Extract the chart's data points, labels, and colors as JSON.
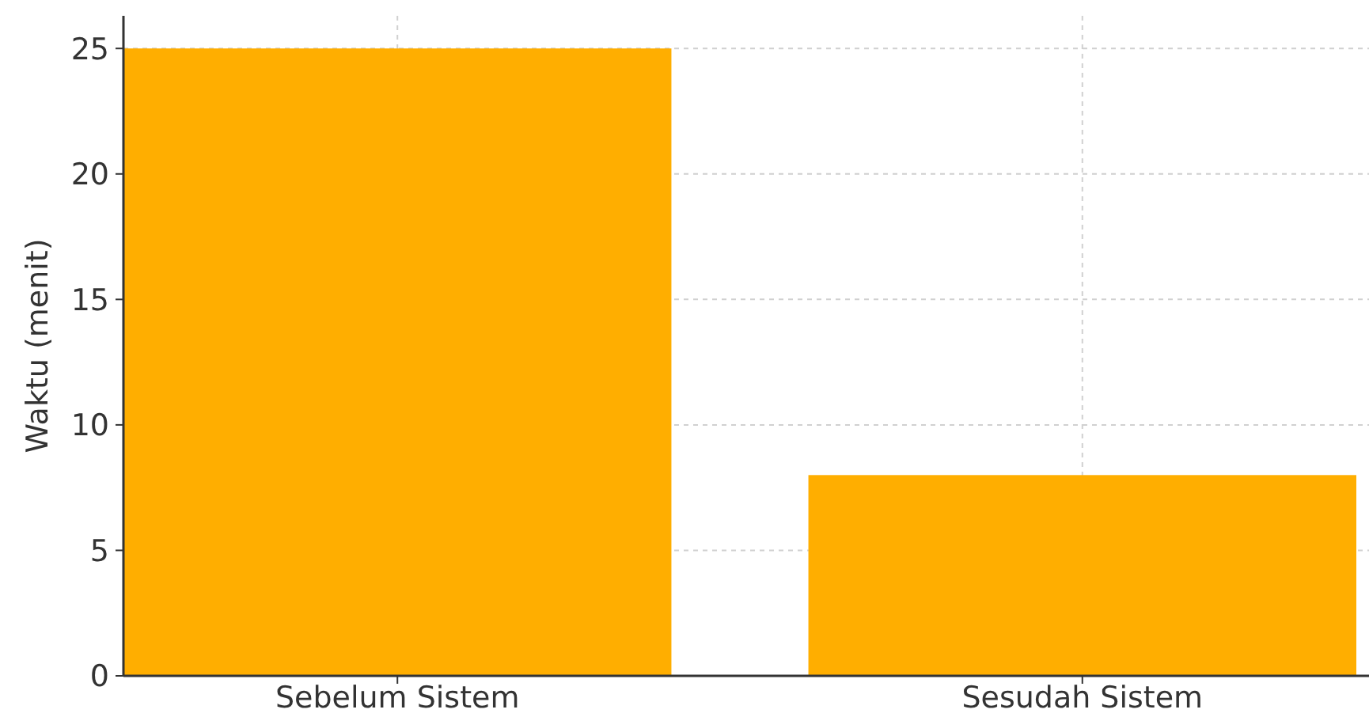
{
  "chart_data": {
    "type": "bar",
    "ylabel": "Waktu (menit)",
    "categories": [
      "Sebelum Sistem",
      "Sesudah Sistem"
    ],
    "values": [
      25,
      8
    ],
    "color": "#ffae00",
    "ylim": [
      0,
      26.3
    ],
    "yticks": [
      0,
      5,
      10,
      15,
      20,
      25
    ],
    "grid": true
  }
}
